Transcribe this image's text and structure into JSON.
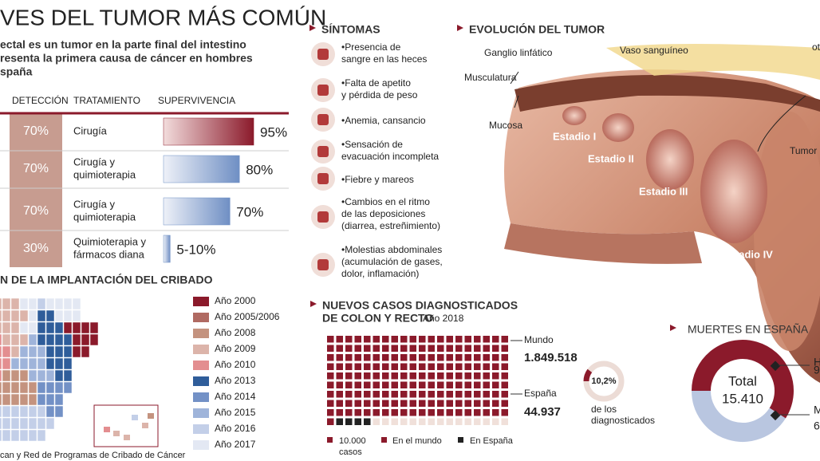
{
  "header": {
    "title": "VES DEL TUMOR MÁS COMÚN",
    "intro": [
      "ectal es un tumor en la parte final del intestino",
      "resenta la primera causa de cáncer en hombres",
      "spaña"
    ]
  },
  "table": {
    "columns": [
      "DETECCIÓN",
      "TRATAMIENTO",
      "SUPERVIVENCIA"
    ],
    "rows": [
      {
        "detection": "70%",
        "treatment": [
          "Cirugía"
        ],
        "survival": {
          "value": 95,
          "label": "95%"
        },
        "color": "#8b1a2b"
      },
      {
        "detection": "70%",
        "treatment": [
          "Cirugía y",
          "quimioterapia"
        ],
        "survival": {
          "value": 80,
          "label": "80%"
        },
        "color": "#6f8fc4"
      },
      {
        "detection": "70%",
        "treatment": [
          "Cirugía y",
          "quimioterapia"
        ],
        "survival": {
          "value": 70,
          "label": "70%"
        },
        "color": "#6f8fc4"
      },
      {
        "detection": "30%",
        "treatment": [
          "Quimioterapia y",
          "fármacos diana"
        ],
        "survival": {
          "low": 5,
          "high": 10,
          "label": "5-10%"
        },
        "color": "#6f8fc4"
      }
    ]
  },
  "map": {
    "title": "N DE LA IMPLANTACIÓN DEL CRIBADO",
    "source": "can y Red de Programas de Cribado de Cáncer",
    "legend": [
      {
        "label": "Año 2000",
        "color": "#8b1a2b"
      },
      {
        "label": "Año 2005/2006",
        "color": "#b06a62"
      },
      {
        "label": "Año 2008",
        "color": "#c4937f"
      },
      {
        "label": "Año 2009",
        "color": "#dcb4aa"
      },
      {
        "label": "Año 2010",
        "color": "#e38e90"
      },
      {
        "label": "Año 2013",
        "color": "#2f5d9a"
      },
      {
        "label": "Año 2014",
        "color": "#7391c6"
      },
      {
        "label": "Año 2015",
        "color": "#9fb4da"
      },
      {
        "label": "Año 2016",
        "color": "#c3cfe8"
      },
      {
        "label": "Año 2017",
        "color": "#e3e8f3"
      }
    ]
  },
  "symptoms": {
    "title": "SÍNTOMAS",
    "items": [
      [
        "•Presencia de",
        "sangre en las heces"
      ],
      [
        "•Falta de apetito",
        "y pérdida de peso"
      ],
      [
        "•Anemia, cansancio"
      ],
      [
        "•Sensación de",
        "evacuación incompleta"
      ],
      [
        "•Fiebre y mareos"
      ],
      [
        "•Cambios en el ritmo",
        "de las deposiciones",
        "(diarrea, estreñimiento)"
      ],
      [
        "•Molestias abdominales",
        "(acumulación de gases,",
        "dolor, inflamación)"
      ]
    ]
  },
  "evolution": {
    "title": "EVOLUCIÓN DEL TUMOR",
    "labels": [
      "Ganglio linfático",
      "Vaso sanguíneo",
      "ot",
      "Musculatura",
      "Mucosa",
      "Tumor"
    ],
    "stages": [
      "Estadio I",
      "Estadio II",
      "Estadio III",
      "Estadio IV"
    ]
  },
  "new_cases": {
    "title": [
      "NUEVOS CASOS DIAGNOSTICADOS",
      "DE COLON Y RECTO"
    ],
    "year": "Año 2018",
    "unit": 10000,
    "world": {
      "name": "Mundo",
      "value": 1849518,
      "label": "1.849.518",
      "color": "#8b1a2b"
    },
    "spain": {
      "name": "España",
      "value": 44937,
      "label": "44.937",
      "color": "#222222"
    },
    "share": {
      "value": 10.2,
      "label": "10,2%",
      "note": [
        "de los",
        "diagnosticados"
      ]
    },
    "legend": {
      "unit": [
        "10.000",
        "casos"
      ],
      "world": "En el mundo",
      "spain": "En España"
    }
  },
  "deaths": {
    "title": "MUERTES EN ESPAÑA",
    "total_label": "Total",
    "total": "15.410",
    "segments": [
      {
        "value": 9100,
        "color": "#8b1a2b",
        "texts": [
          "H",
          "9"
        ]
      },
      {
        "value": 6310,
        "color": "#b9c6e0",
        "texts": [
          "M",
          "6"
        ]
      }
    ]
  }
}
